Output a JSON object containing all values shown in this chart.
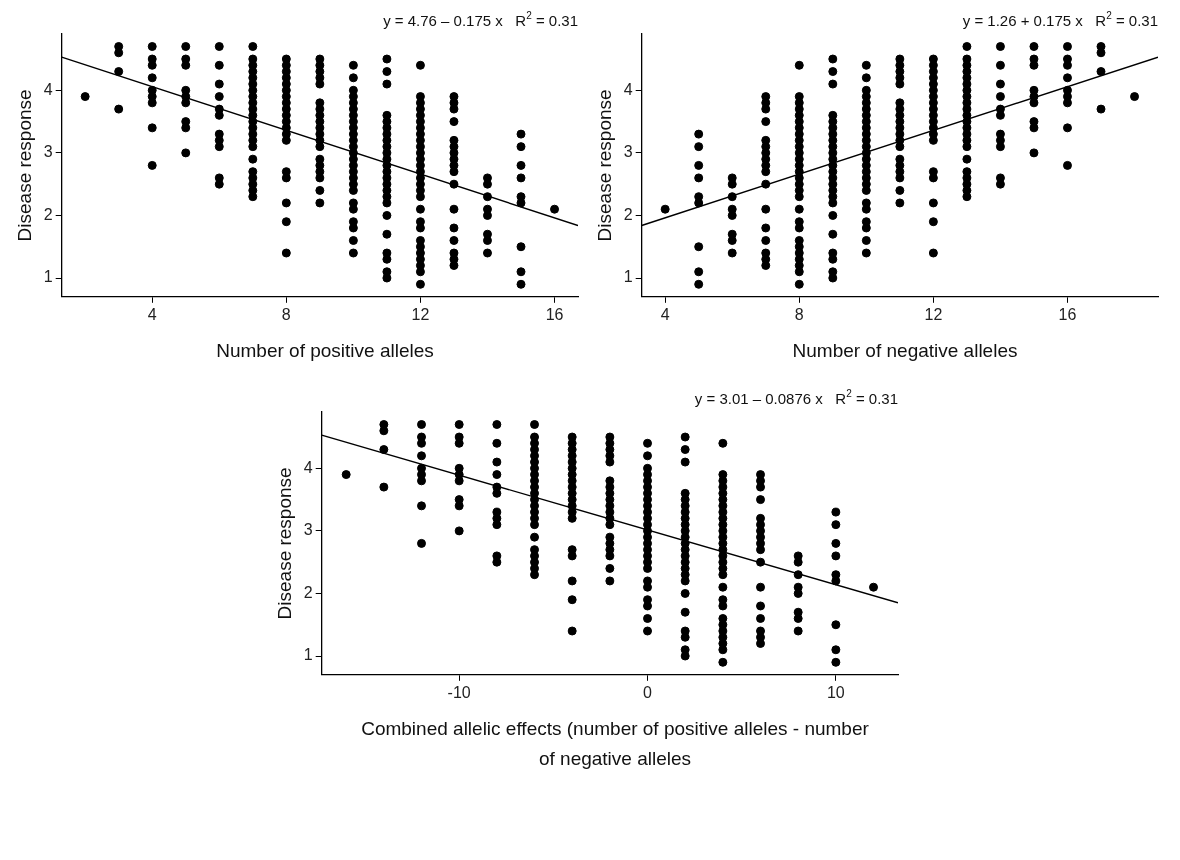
{
  "chart_data": [
    {
      "type": "scatter",
      "xlabel": "Number of positive alleles",
      "ylabel": "Disease response",
      "xlim": [
        1.3,
        16.7
      ],
      "ylim": [
        0.7,
        4.9
      ],
      "xticks": [
        4,
        8,
        12,
        16
      ],
      "yticks": [
        1,
        2,
        3,
        4
      ],
      "grid": false,
      "annotations": [
        "y = 4.76 – 0.175 x   R$^{2}$ = 0.31"
      ],
      "series": [
        {
          "marker": "circle",
          "color": "#000000",
          "x": [
            2,
            3,
            3,
            3,
            3,
            4,
            4,
            4,
            4,
            4,
            4,
            4,
            4,
            4,
            5,
            5,
            5,
            5,
            5,
            5,
            5,
            5,
            5,
            6,
            6,
            6,
            6,
            6,
            6,
            6,
            6,
            6,
            6,
            6,
            7,
            7,
            7,
            7,
            7,
            7,
            7,
            7,
            7,
            7,
            7,
            7,
            7,
            7,
            7,
            7,
            7,
            7,
            7,
            7,
            7,
            7,
            8,
            8,
            8,
            8,
            8,
            8,
            8,
            8,
            8,
            8,
            8,
            8,
            8,
            8,
            8,
            8,
            8,
            8,
            8,
            9,
            9,
            9,
            9,
            9,
            9,
            9,
            9,
            9,
            9,
            9,
            9,
            9,
            9,
            9,
            9,
            9,
            9,
            9,
            10,
            10,
            10,
            10,
            10,
            10,
            10,
            10,
            10,
            10,
            10,
            10,
            10,
            10,
            10,
            10,
            10,
            10,
            10,
            10,
            10,
            10,
            10,
            10,
            10,
            11,
            11,
            11,
            11,
            11,
            11,
            11,
            11,
            11,
            11,
            11,
            11,
            11,
            11,
            11,
            11,
            11,
            11,
            11,
            11,
            11,
            11,
            11,
            11,
            12,
            12,
            12,
            12,
            12,
            12,
            12,
            12,
            12,
            12,
            12,
            12,
            12,
            12,
            12,
            12,
            12,
            12,
            12,
            12,
            12,
            12,
            12,
            12,
            12,
            12,
            12,
            12,
            13,
            13,
            13,
            13,
            13,
            13,
            13,
            13,
            13,
            13,
            13,
            13,
            13,
            13,
            13,
            13,
            13,
            14,
            14,
            14,
            14,
            14,
            14,
            14,
            14,
            15,
            15,
            15,
            15,
            15,
            15,
            15,
            15,
            15,
            16
          ],
          "values": [
            3.9,
            4.7,
            4.6,
            4.3,
            3.7,
            4.7,
            4.5,
            4.4,
            4.2,
            4.0,
            3.9,
            3.8,
            3.4,
            2.8,
            4.7,
            4.5,
            4.4,
            4.0,
            3.9,
            3.8,
            3.5,
            3.4,
            3.0,
            4.7,
            4.4,
            4.1,
            3.9,
            3.7,
            3.6,
            3.3,
            3.2,
            3.1,
            2.6,
            2.5,
            4.7,
            4.5,
            4.4,
            4.3,
            4.2,
            4.1,
            4.0,
            3.9,
            3.8,
            3.7,
            3.6,
            3.5,
            3.4,
            3.3,
            3.2,
            3.1,
            2.9,
            2.7,
            2.6,
            2.5,
            2.4,
            2.3,
            4.5,
            4.4,
            4.3,
            4.2,
            4.1,
            4.0,
            3.9,
            3.8,
            3.7,
            3.6,
            3.5,
            3.4,
            3.3,
            3.2,
            2.7,
            2.6,
            2.2,
            1.9,
            1.4,
            4.5,
            4.4,
            4.3,
            4.2,
            4.1,
            3.8,
            3.7,
            3.6,
            3.5,
            3.4,
            3.3,
            3.2,
            3.1,
            2.9,
            2.8,
            2.7,
            2.6,
            2.4,
            2.2,
            4.4,
            4.2,
            4.0,
            3.9,
            3.8,
            3.7,
            3.6,
            3.5,
            3.4,
            3.3,
            3.2,
            3.1,
            3.0,
            2.9,
            2.8,
            2.7,
            2.6,
            2.5,
            2.4,
            2.2,
            2.1,
            1.9,
            1.8,
            1.6,
            1.4,
            4.5,
            4.3,
            4.1,
            3.6,
            3.5,
            3.4,
            3.3,
            3.2,
            3.1,
            3.0,
            2.9,
            2.8,
            2.7,
            2.6,
            2.5,
            2.4,
            2.3,
            2.2,
            2.0,
            1.7,
            1.4,
            1.3,
            1.1,
            1.0,
            4.4,
            3.9,
            3.8,
            3.7,
            3.6,
            3.5,
            3.4,
            3.3,
            3.2,
            3.1,
            3.0,
            2.9,
            2.8,
            2.7,
            2.6,
            2.5,
            2.4,
            2.3,
            2.1,
            1.9,
            1.8,
            1.6,
            1.5,
            1.4,
            1.3,
            1.2,
            1.1,
            0.9,
            3.9,
            3.8,
            3.7,
            3.5,
            3.2,
            3.1,
            3.0,
            2.9,
            2.8,
            2.7,
            2.5,
            2.1,
            1.8,
            1.6,
            1.4,
            1.3,
            1.2,
            2.6,
            2.5,
            2.3,
            2.1,
            2.0,
            1.7,
            1.6,
            1.4,
            3.3,
            3.1,
            2.8,
            2.6,
            2.3,
            2.2,
            1.5,
            1.1,
            0.9,
            2.1
          ]
        },
        {
          "type": "line",
          "marker": "none",
          "color": "#000000",
          "x": [
            1.3,
            16.7
          ],
          "values": [
            4.53,
            1.84
          ]
        }
      ]
    },
    {
      "type": "scatter",
      "xlabel": "Number of negative alleles",
      "ylabel": "Disease response",
      "xlim": [
        3.3,
        18.7
      ],
      "ylim": [
        0.7,
        4.9
      ],
      "xticks": [
        4,
        8,
        12,
        16
      ],
      "yticks": [
        1,
        2,
        3,
        4
      ],
      "grid": false,
      "annotations": [
        "y = 1.26 + 0.175 x   R$^{2}$ = 0.31"
      ],
      "series": [
        {
          "marker": "circle",
          "color": "#000000",
          "x": [
            18,
            17,
            17,
            17,
            17,
            16,
            16,
            16,
            16,
            16,
            16,
            16,
            16,
            16,
            15,
            15,
            15,
            15,
            15,
            15,
            15,
            15,
            15,
            14,
            14,
            14,
            14,
            14,
            14,
            14,
            14,
            14,
            14,
            14,
            13,
            13,
            13,
            13,
            13,
            13,
            13,
            13,
            13,
            13,
            13,
            13,
            13,
            13,
            13,
            13,
            13,
            13,
            13,
            13,
            13,
            13,
            12,
            12,
            12,
            12,
            12,
            12,
            12,
            12,
            12,
            12,
            12,
            12,
            12,
            12,
            12,
            12,
            12,
            12,
            12,
            11,
            11,
            11,
            11,
            11,
            11,
            11,
            11,
            11,
            11,
            11,
            11,
            11,
            11,
            11,
            11,
            11,
            11,
            11,
            10,
            10,
            10,
            10,
            10,
            10,
            10,
            10,
            10,
            10,
            10,
            10,
            10,
            10,
            10,
            10,
            10,
            10,
            10,
            10,
            10,
            10,
            10,
            10,
            10,
            9,
            9,
            9,
            9,
            9,
            9,
            9,
            9,
            9,
            9,
            9,
            9,
            9,
            9,
            9,
            9,
            9,
            9,
            9,
            9,
            9,
            9,
            9,
            9,
            8,
            8,
            8,
            8,
            8,
            8,
            8,
            8,
            8,
            8,
            8,
            8,
            8,
            8,
            8,
            8,
            8,
            8,
            8,
            8,
            8,
            8,
            8,
            8,
            8,
            8,
            8,
            8,
            7,
            7,
            7,
            7,
            7,
            7,
            7,
            7,
            7,
            7,
            7,
            7,
            7,
            7,
            7,
            7,
            7,
            6,
            6,
            6,
            6,
            6,
            6,
            6,
            6,
            5,
            5,
            5,
            5,
            5,
            5,
            5,
            5,
            5,
            4
          ],
          "values": [
            3.9,
            4.7,
            4.6,
            4.3,
            3.7,
            4.7,
            4.5,
            4.4,
            4.2,
            4.0,
            3.9,
            3.8,
            3.4,
            2.8,
            4.7,
            4.5,
            4.4,
            4.0,
            3.9,
            3.8,
            3.5,
            3.4,
            3.0,
            4.7,
            4.4,
            4.1,
            3.9,
            3.7,
            3.6,
            3.3,
            3.2,
            3.1,
            2.6,
            2.5,
            4.7,
            4.5,
            4.4,
            4.3,
            4.2,
            4.1,
            4.0,
            3.9,
            3.8,
            3.7,
            3.6,
            3.5,
            3.4,
            3.3,
            3.2,
            3.1,
            2.9,
            2.7,
            2.6,
            2.5,
            2.4,
            2.3,
            4.5,
            4.4,
            4.3,
            4.2,
            4.1,
            4.0,
            3.9,
            3.8,
            3.7,
            3.6,
            3.5,
            3.4,
            3.3,
            3.2,
            2.7,
            2.6,
            2.2,
            1.9,
            1.4,
            4.5,
            4.4,
            4.3,
            4.2,
            4.1,
            3.8,
            3.7,
            3.6,
            3.5,
            3.4,
            3.3,
            3.2,
            3.1,
            2.9,
            2.8,
            2.7,
            2.6,
            2.4,
            2.2,
            4.4,
            4.2,
            4.0,
            3.9,
            3.8,
            3.7,
            3.6,
            3.5,
            3.4,
            3.3,
            3.2,
            3.1,
            3.0,
            2.9,
            2.8,
            2.7,
            2.6,
            2.5,
            2.4,
            2.2,
            2.1,
            1.9,
            1.8,
            1.6,
            1.4,
            4.5,
            4.3,
            4.1,
            3.6,
            3.5,
            3.4,
            3.3,
            3.2,
            3.1,
            3.0,
            2.9,
            2.8,
            2.7,
            2.6,
            2.5,
            2.4,
            2.3,
            2.2,
            2.0,
            1.7,
            1.4,
            1.3,
            1.1,
            1.0,
            4.4,
            3.9,
            3.8,
            3.7,
            3.6,
            3.5,
            3.4,
            3.3,
            3.2,
            3.1,
            3.0,
            2.9,
            2.8,
            2.7,
            2.6,
            2.5,
            2.4,
            2.3,
            2.1,
            1.9,
            1.8,
            1.6,
            1.5,
            1.4,
            1.3,
            1.2,
            1.1,
            0.9,
            3.9,
            3.8,
            3.7,
            3.5,
            3.2,
            3.1,
            3.0,
            2.9,
            2.8,
            2.7,
            2.5,
            2.1,
            1.8,
            1.6,
            1.4,
            1.3,
            1.2,
            2.6,
            2.5,
            2.3,
            2.1,
            2.0,
            1.7,
            1.6,
            1.4,
            3.3,
            3.1,
            2.8,
            2.6,
            2.3,
            2.2,
            1.5,
            1.1,
            0.9,
            2.1
          ]
        },
        {
          "type": "line",
          "marker": "none",
          "color": "#000000",
          "x": [
            3.3,
            18.7
          ],
          "values": [
            1.84,
            4.53
          ]
        }
      ]
    },
    {
      "type": "scatter",
      "xlabel": "Combined allelic effects (number of positive alleles - number of negative alleles",
      "ylabel": "Disease response",
      "xlim": [
        -17.3,
        13.3
      ],
      "ylim": [
        0.7,
        4.9
      ],
      "xticks": [
        -10,
        0,
        10
      ],
      "yticks": [
        1,
        2,
        3,
        4
      ],
      "grid": false,
      "annotations": [
        "y = 3.01 – 0.0876 x   R$^{2}$ = 0.31"
      ],
      "series": [
        {
          "marker": "circle",
          "color": "#000000",
          "x": [
            -16,
            -14,
            -14,
            -14,
            -14,
            -12,
            -12,
            -12,
            -12,
            -12,
            -12,
            -12,
            -12,
            -12,
            -10,
            -10,
            -10,
            -10,
            -10,
            -10,
            -10,
            -10,
            -10,
            -8,
            -8,
            -8,
            -8,
            -8,
            -8,
            -8,
            -8,
            -8,
            -8,
            -8,
            -6,
            -6,
            -6,
            -6,
            -6,
            -6,
            -6,
            -6,
            -6,
            -6,
            -6,
            -6,
            -6,
            -6,
            -6,
            -6,
            -6,
            -6,
            -6,
            -6,
            -6,
            -6,
            -4,
            -4,
            -4,
            -4,
            -4,
            -4,
            -4,
            -4,
            -4,
            -4,
            -4,
            -4,
            -4,
            -4,
            -4,
            -4,
            -4,
            -4,
            -4,
            -2,
            -2,
            -2,
            -2,
            -2,
            -2,
            -2,
            -2,
            -2,
            -2,
            -2,
            -2,
            -2,
            -2,
            -2,
            -2,
            -2,
            -2,
            -2,
            0,
            0,
            0,
            0,
            0,
            0,
            0,
            0,
            0,
            0,
            0,
            0,
            0,
            0,
            0,
            0,
            0,
            0,
            0,
            0,
            0,
            0,
            0,
            0,
            0,
            2,
            2,
            2,
            2,
            2,
            2,
            2,
            2,
            2,
            2,
            2,
            2,
            2,
            2,
            2,
            2,
            2,
            2,
            2,
            2,
            2,
            2,
            2,
            2,
            4,
            4,
            4,
            4,
            4,
            4,
            4,
            4,
            4,
            4,
            4,
            4,
            4,
            4,
            4,
            4,
            4,
            4,
            4,
            4,
            4,
            4,
            4,
            4,
            4,
            4,
            4,
            4,
            6,
            6,
            6,
            6,
            6,
            6,
            6,
            6,
            6,
            6,
            6,
            6,
            6,
            6,
            6,
            6,
            6,
            8,
            8,
            8,
            8,
            8,
            8,
            8,
            8,
            10,
            10,
            10,
            10,
            10,
            10,
            10,
            10,
            10,
            12
          ],
          "values": [
            3.9,
            4.7,
            4.6,
            4.3,
            3.7,
            4.7,
            4.5,
            4.4,
            4.2,
            4.0,
            3.9,
            3.8,
            3.4,
            2.8,
            4.7,
            4.5,
            4.4,
            4.0,
            3.9,
            3.8,
            3.5,
            3.4,
            3.0,
            4.7,
            4.4,
            4.1,
            3.9,
            3.7,
            3.6,
            3.3,
            3.2,
            3.1,
            2.6,
            2.5,
            4.7,
            4.5,
            4.4,
            4.3,
            4.2,
            4.1,
            4.0,
            3.9,
            3.8,
            3.7,
            3.6,
            3.5,
            3.4,
            3.3,
            3.2,
            3.1,
            2.9,
            2.7,
            2.6,
            2.5,
            2.4,
            2.3,
            4.5,
            4.4,
            4.3,
            4.2,
            4.1,
            4.0,
            3.9,
            3.8,
            3.7,
            3.6,
            3.5,
            3.4,
            3.3,
            3.2,
            2.7,
            2.6,
            2.2,
            1.9,
            1.4,
            4.5,
            4.4,
            4.3,
            4.2,
            4.1,
            3.8,
            3.7,
            3.6,
            3.5,
            3.4,
            3.3,
            3.2,
            3.1,
            2.9,
            2.8,
            2.7,
            2.6,
            2.4,
            2.2,
            4.4,
            4.2,
            4.0,
            3.9,
            3.8,
            3.7,
            3.6,
            3.5,
            3.4,
            3.3,
            3.2,
            3.1,
            3.0,
            2.9,
            2.8,
            2.7,
            2.6,
            2.5,
            2.4,
            2.2,
            2.1,
            1.9,
            1.8,
            1.6,
            1.4,
            4.5,
            4.3,
            4.1,
            3.6,
            3.5,
            3.4,
            3.3,
            3.2,
            3.1,
            3.0,
            2.9,
            2.8,
            2.7,
            2.6,
            2.5,
            2.4,
            2.3,
            2.2,
            2.0,
            1.7,
            1.4,
            1.3,
            1.1,
            1.0,
            4.4,
            3.9,
            3.8,
            3.7,
            3.6,
            3.5,
            3.4,
            3.3,
            3.2,
            3.1,
            3.0,
            2.9,
            2.8,
            2.7,
            2.6,
            2.5,
            2.4,
            2.3,
            2.1,
            1.9,
            1.8,
            1.6,
            1.5,
            1.4,
            1.3,
            1.2,
            1.1,
            0.9,
            3.9,
            3.8,
            3.7,
            3.5,
            3.2,
            3.1,
            3.0,
            2.9,
            2.8,
            2.7,
            2.5,
            2.1,
            1.8,
            1.6,
            1.4,
            1.3,
            1.2,
            2.6,
            2.5,
            2.3,
            2.1,
            2.0,
            1.7,
            1.6,
            1.4,
            3.3,
            3.1,
            2.8,
            2.6,
            2.3,
            2.2,
            1.5,
            1.1,
            0.9,
            2.1
          ]
        },
        {
          "type": "line",
          "marker": "none",
          "color": "#000000",
          "x": [
            -17.3,
            13.3
          ],
          "values": [
            4.53,
            1.85
          ]
        }
      ]
    }
  ]
}
